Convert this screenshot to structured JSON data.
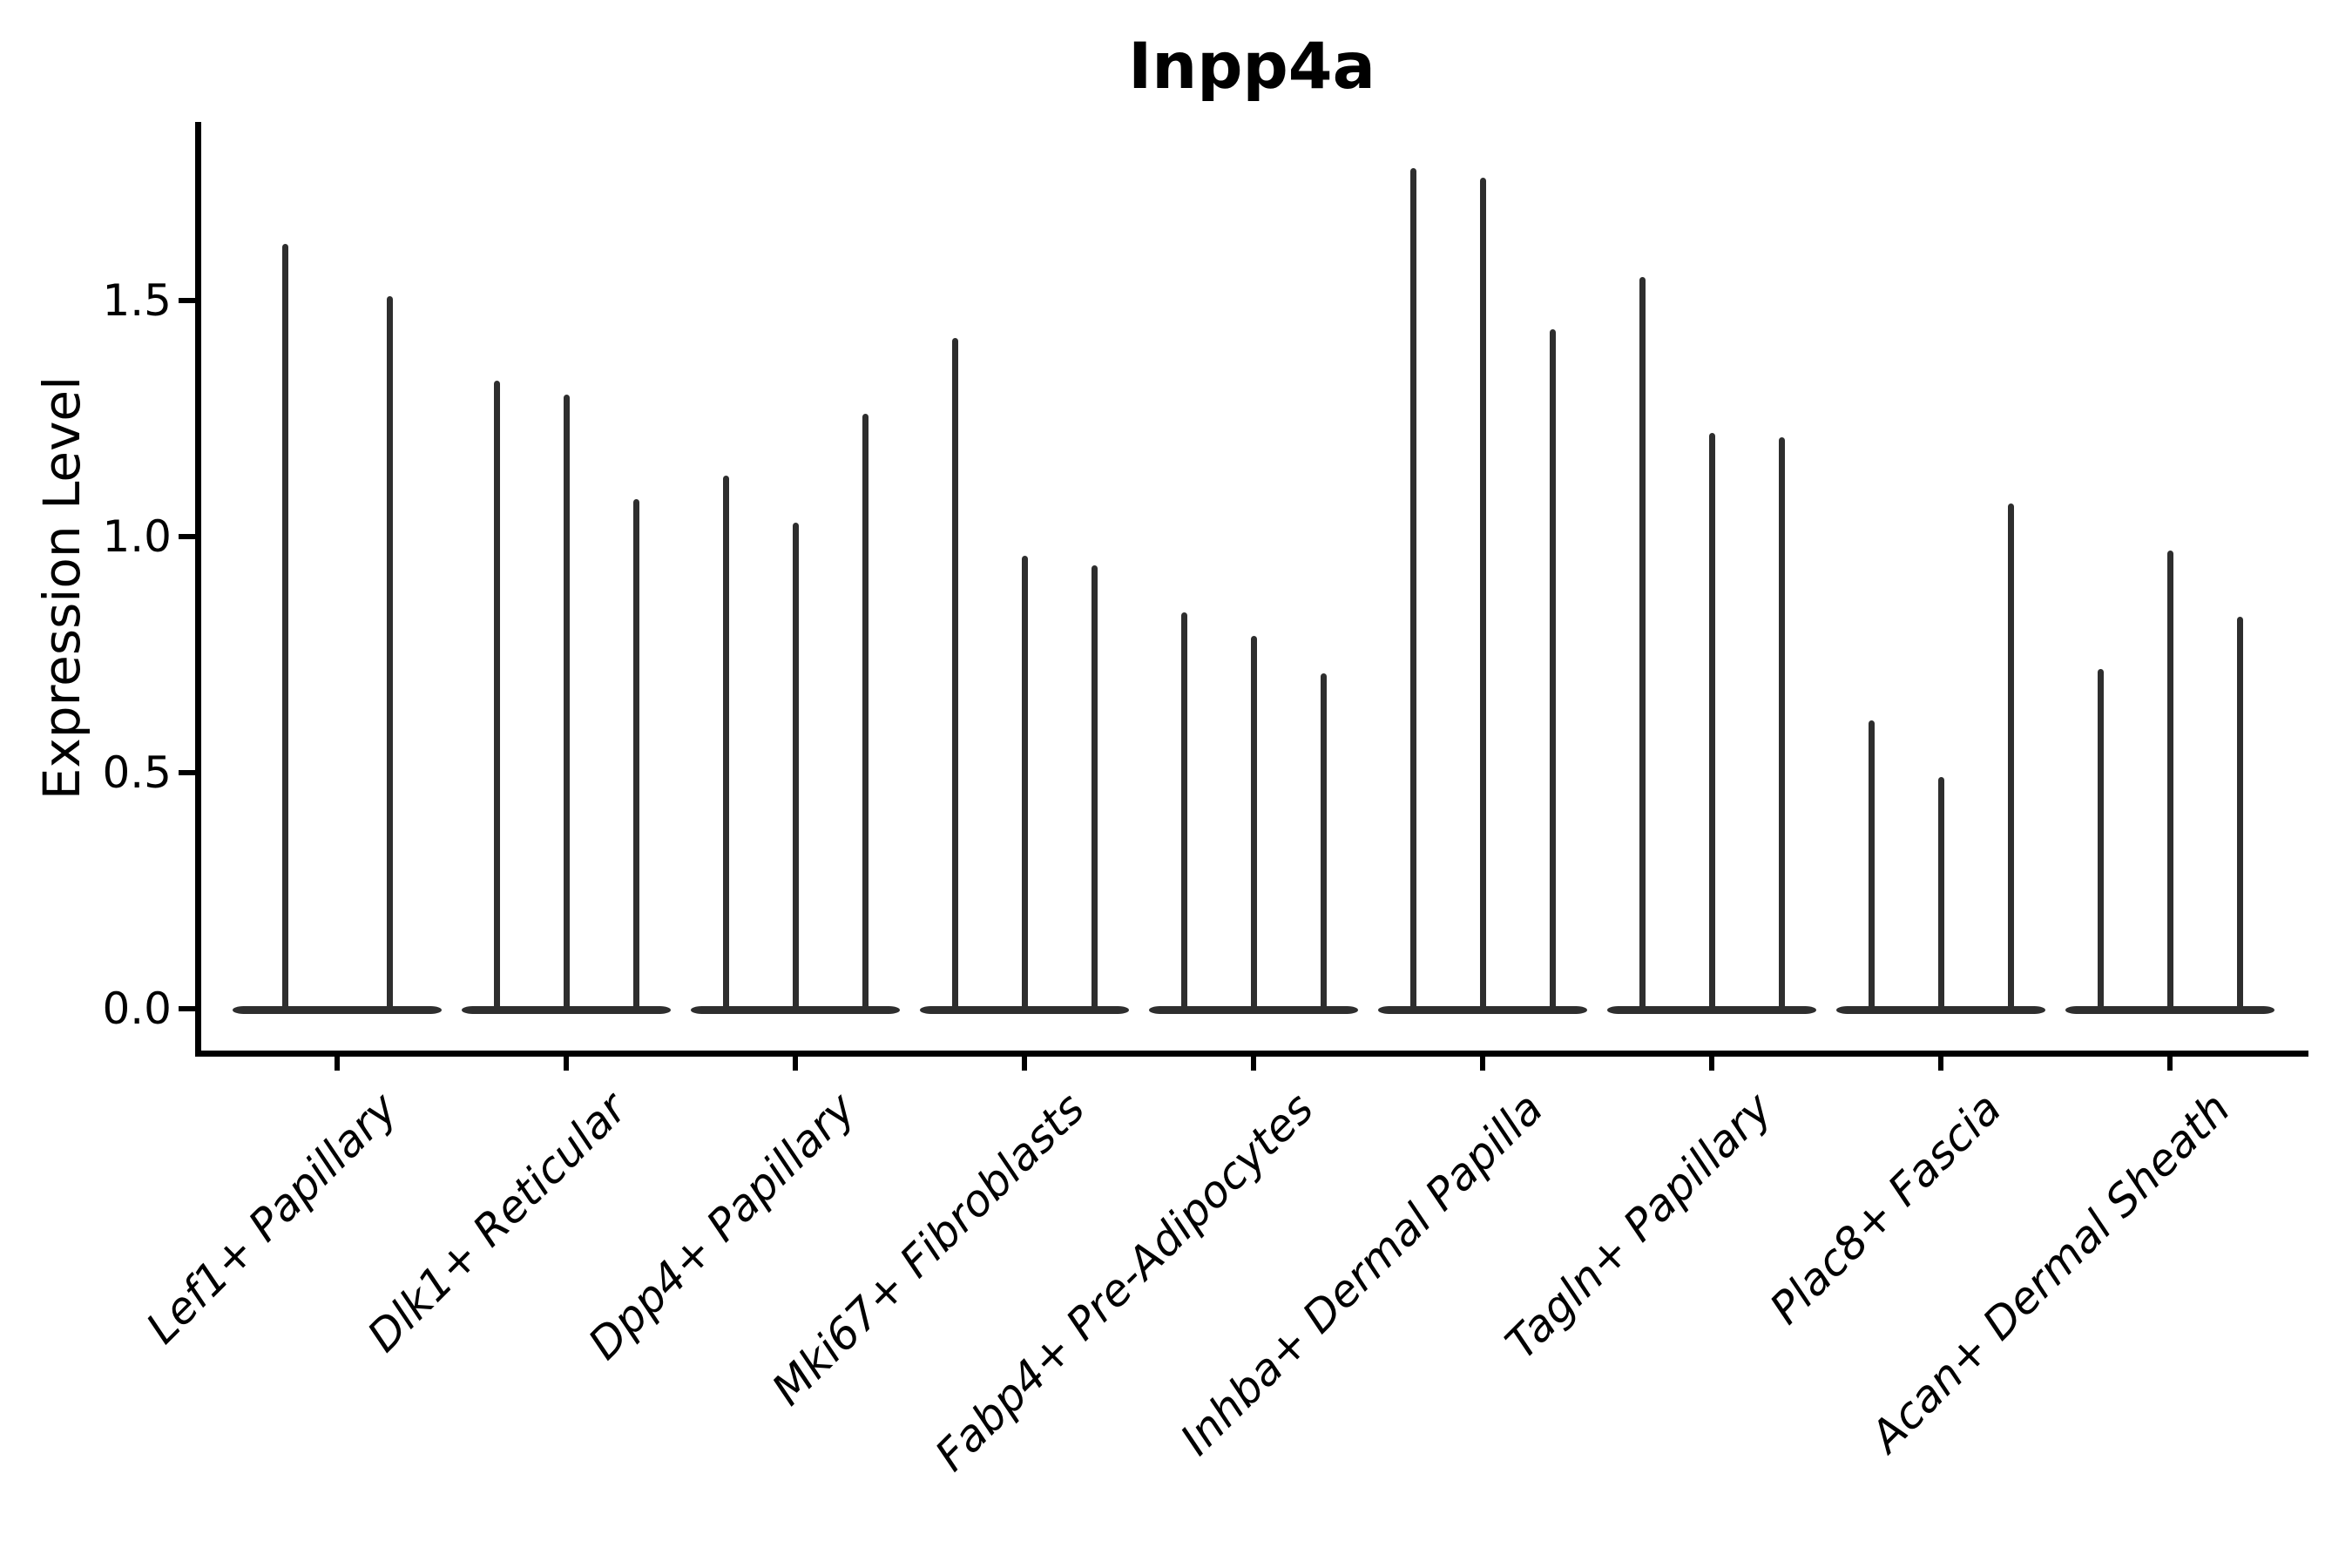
{
  "chart_data": {
    "type": "violin",
    "title": "Inpp4a",
    "xlabel": "",
    "ylabel": "Expression Level",
    "yticks": [
      0.0,
      0.5,
      1.0,
      1.5
    ],
    "ytick_labels": [
      "0.0",
      "0.5",
      "1.0",
      "1.5"
    ],
    "ylim": [
      -0.1,
      1.88
    ],
    "grid": false,
    "legend": "none",
    "description": "Single-cell violin plot of Inpp4a expression; each cluster shows 2-3 needle-thin violins (most cells at 0 expression, thin tail up to the maximum).",
    "categories": [
      "Lef1+ Papillary",
      "Dlk1+ Reticular",
      "Dpp4+ Papillary",
      "Mki67+ Fibroblasts",
      "Fabp4+ Pre-Adipocytes",
      "Inhba+ Dermal Papilla",
      "Tagln+ Papillary",
      "Plac8+ Fascia",
      "Acan+ Dermal Sheath"
    ],
    "groups": [
      {
        "category": "Lef1+ Papillary",
        "violin_peak_values": [
          1.62,
          1.51
        ]
      },
      {
        "category": "Dlk1+ Reticular",
        "violin_peak_values": [
          1.33,
          1.3,
          1.08
        ]
      },
      {
        "category": "Dpp4+ Papillary",
        "violin_peak_values": [
          1.13,
          1.03,
          1.26
        ]
      },
      {
        "category": "Mki67+ Fibroblasts",
        "violin_peak_values": [
          1.42,
          0.96,
          0.94
        ]
      },
      {
        "category": "Fabp4+ Pre-Adipocytes",
        "violin_peak_values": [
          0.84,
          0.79,
          0.71
        ]
      },
      {
        "category": "Inhba+ Dermal Papilla",
        "violin_peak_values": [
          1.78,
          1.76,
          1.44
        ]
      },
      {
        "category": "Tagln+ Papillary",
        "violin_peak_values": [
          1.55,
          1.22,
          1.21
        ]
      },
      {
        "category": "Plac8+ Fascia",
        "violin_peak_values": [
          0.61,
          0.49,
          1.07
        ]
      },
      {
        "category": "Acan+ Dermal Sheath",
        "violin_peak_values": [
          0.72,
          0.97,
          0.83
        ]
      }
    ],
    "baseline_value": 0.0,
    "style": {
      "violin_color": "#2e2e2e",
      "axis_color": "#000000",
      "text_color": "#000000",
      "background_color": "#ffffff"
    }
  }
}
